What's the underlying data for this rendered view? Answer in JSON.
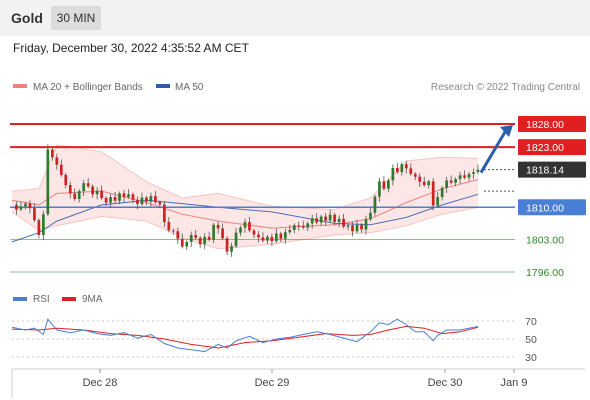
{
  "header": {
    "title": "Gold",
    "timeframe": "30 MIN"
  },
  "timestamp": "Friday, December 30, 2022 4:35:52 AM CET",
  "legend": {
    "items": [
      {
        "label": "MA 20 + Bollinger Bands",
        "color": "#f08080"
      },
      {
        "label": "MA 50",
        "color": "#2e5aa8"
      }
    ],
    "credit": "Research © 2022 Trading Central"
  },
  "rsi_legend": {
    "items": [
      {
        "label": "RSI",
        "color": "#4a7fd6"
      },
      {
        "label": "9MA",
        "color": "#e02020"
      }
    ]
  },
  "colors": {
    "up": "#2d7a2d",
    "down": "#d02020",
    "wick": "#555555",
    "resistance": "#e02020",
    "pivot": "#4a7fd6",
    "support": "#2d8a2d",
    "current": "#333333",
    "forecast_arrow": "#2a5fae"
  },
  "chart_data": {
    "type": "candlestick",
    "title": "Gold",
    "timeframe": "30 MIN",
    "x_tick_labels": [
      "Dec 28",
      "Dec 29",
      "Dec 30",
      "Jan 9"
    ],
    "ylim": [
      1795,
      1829
    ],
    "current_price": 1818.14,
    "levels": [
      {
        "value": 1828.0,
        "label": "1828.00",
        "kind": "resistance"
      },
      {
        "value": 1823.0,
        "label": "1823.00",
        "kind": "resistance"
      },
      {
        "value": 1818.14,
        "label": "1818.14",
        "kind": "current"
      },
      {
        "value": 1810.0,
        "label": "1810.00",
        "kind": "pivot"
      },
      {
        "value": 1803.0,
        "label": "1803.00",
        "kind": "support"
      },
      {
        "value": 1796.0,
        "label": "1796.00",
        "kind": "support"
      }
    ],
    "forecast": {
      "from": 1817.5,
      "to": 1828.0
    },
    "price_path": [
      [
        0,
        1810.5
      ],
      [
        1,
        1809.5
      ],
      [
        2,
        1810.2
      ],
      [
        3,
        1810.8
      ],
      [
        4,
        1809.8
      ],
      [
        5,
        1807.2
      ],
      [
        6,
        1804.0
      ],
      [
        7,
        1808.5
      ],
      [
        8,
        1822.5
      ],
      [
        9,
        1820.8
      ],
      [
        10,
        1819.2
      ],
      [
        11,
        1817.0
      ],
      [
        12,
        1814.8
      ],
      [
        13,
        1813.0
      ],
      [
        14,
        1811.8
      ],
      [
        15,
        1813.5
      ],
      [
        16,
        1815.2
      ],
      [
        17,
        1814.5
      ],
      [
        18,
        1812.8
      ],
      [
        19,
        1813.6
      ],
      [
        20,
        1812.0
      ],
      [
        21,
        1811.0
      ],
      [
        22,
        1812.2
      ],
      [
        23,
        1811.4
      ],
      [
        24,
        1813.0
      ],
      [
        25,
        1812.2
      ],
      [
        26,
        1812.8
      ],
      [
        27,
        1811.6
      ],
      [
        28,
        1810.7
      ],
      [
        29,
        1812.1
      ],
      [
        30,
        1811.2
      ],
      [
        31,
        1812.4
      ],
      [
        32,
        1811.1
      ],
      [
        33,
        1810.6
      ],
      [
        34,
        1806.8
      ],
      [
        35,
        1805.0
      ],
      [
        36,
        1804.8
      ],
      [
        37,
        1803.2
      ],
      [
        38,
        1801.5
      ],
      [
        39,
        1802.5
      ],
      [
        40,
        1804.0
      ],
      [
        41,
        1803.4
      ],
      [
        42,
        1802.0
      ],
      [
        43,
        1803.6
      ],
      [
        44,
        1803.0
      ],
      [
        45,
        1806.2
      ],
      [
        46,
        1805.4
      ],
      [
        47,
        1803.3
      ],
      [
        48,
        1800.4
      ],
      [
        49,
        1801.6
      ],
      [
        50,
        1804.5
      ],
      [
        51,
        1805.6
      ],
      [
        52,
        1806.8
      ],
      [
        53,
        1805.0
      ],
      [
        54,
        1804.1
      ],
      [
        55,
        1803.5
      ],
      [
        56,
        1802.8
      ],
      [
        57,
        1803.6
      ],
      [
        58,
        1802.7
      ],
      [
        59,
        1804.3
      ],
      [
        60,
        1803.2
      ],
      [
        61,
        1804.6
      ],
      [
        62,
        1805.1
      ],
      [
        63,
        1806.1
      ],
      [
        64,
        1806.0
      ],
      [
        65,
        1805.6
      ],
      [
        66,
        1806.5
      ],
      [
        67,
        1807.6
      ],
      [
        68,
        1806.7
      ],
      [
        69,
        1808.0
      ],
      [
        70,
        1807.1
      ],
      [
        71,
        1808.4
      ],
      [
        72,
        1806.8
      ],
      [
        73,
        1807.5
      ],
      [
        74,
        1805.8
      ],
      [
        75,
        1806.1
      ],
      [
        76,
        1804.8
      ],
      [
        77,
        1806.2
      ],
      [
        78,
        1805.2
      ],
      [
        79,
        1807.4
      ],
      [
        80,
        1808.8
      ],
      [
        81,
        1812.3
      ],
      [
        82,
        1815.6
      ],
      [
        83,
        1814.0
      ],
      [
        84,
        1815.8
      ],
      [
        85,
        1818.5
      ],
      [
        86,
        1817.6
      ],
      [
        87,
        1819.3
      ],
      [
        88,
        1818.4
      ],
      [
        89,
        1817.2
      ],
      [
        90,
        1816.6
      ],
      [
        91,
        1815.5
      ],
      [
        92,
        1814.8
      ],
      [
        93,
        1815.6
      ],
      [
        94,
        1810.4
      ],
      [
        95,
        1812.2
      ],
      [
        96,
        1814.2
      ],
      [
        97,
        1815.8
      ],
      [
        98,
        1815.3
      ],
      [
        99,
        1816.1
      ],
      [
        100,
        1816.9
      ],
      [
        101,
        1816.4
      ],
      [
        102,
        1817.2
      ],
      [
        103,
        1817.6
      ],
      [
        104,
        1818.14
      ]
    ],
    "bollinger": {
      "upper": [
        [
          0,
          1813.5
        ],
        [
          6,
          1814.0
        ],
        [
          10,
          1823.5
        ],
        [
          20,
          1822.0
        ],
        [
          30,
          1815.5
        ],
        [
          38,
          1812.0
        ],
        [
          46,
          1813.0
        ],
        [
          58,
          1810.2
        ],
        [
          72,
          1809.5
        ],
        [
          80,
          1812.0
        ],
        [
          88,
          1820.0
        ],
        [
          96,
          1820.8
        ],
        [
          104,
          1820.6
        ]
      ],
      "middle": [
        [
          0,
          1811.5
        ],
        [
          6,
          1810.5
        ],
        [
          10,
          1813.0
        ],
        [
          20,
          1813.5
        ],
        [
          30,
          1811.0
        ],
        [
          38,
          1808.5
        ],
        [
          46,
          1807.0
        ],
        [
          58,
          1805.5
        ],
        [
          72,
          1806.2
        ],
        [
          80,
          1807.5
        ],
        [
          88,
          1811.0
        ],
        [
          96,
          1814.0
        ],
        [
          104,
          1816.0
        ]
      ],
      "lower": [
        [
          0,
          1809.0
        ],
        [
          6,
          1805.0
        ],
        [
          10,
          1806.0
        ],
        [
          20,
          1808.0
        ],
        [
          30,
          1807.0
        ],
        [
          38,
          1803.5
        ],
        [
          46,
          1801.0
        ],
        [
          58,
          1802.0
        ],
        [
          72,
          1804.0
        ],
        [
          80,
          1804.5
        ],
        [
          88,
          1806.0
        ],
        [
          96,
          1808.5
        ],
        [
          104,
          1810.0
        ]
      ]
    },
    "ma50": [
      [
        0,
        1802.5
      ],
      [
        6,
        1804.5
      ],
      [
        10,
        1807.0
      ],
      [
        20,
        1810.5
      ],
      [
        30,
        1811.5
      ],
      [
        38,
        1810.8
      ],
      [
        46,
        1810.0
      ],
      [
        58,
        1809.0
      ],
      [
        72,
        1806.5
      ],
      [
        80,
        1806.2
      ],
      [
        88,
        1807.8
      ],
      [
        96,
        1810.5
      ],
      [
        104,
        1812.8
      ]
    ],
    "rsi": {
      "ticks": [
        70,
        50,
        30
      ],
      "ylim": [
        20,
        80
      ],
      "rsi": [
        [
          0,
          63
        ],
        [
          3,
          60
        ],
        [
          5,
          62
        ],
        [
          7,
          55
        ],
        [
          8,
          72
        ],
        [
          10,
          60
        ],
        [
          13,
          57
        ],
        [
          16,
          60
        ],
        [
          19,
          56
        ],
        [
          22,
          54
        ],
        [
          25,
          57
        ],
        [
          28,
          51
        ],
        [
          31,
          55
        ],
        [
          34,
          45
        ],
        [
          37,
          40
        ],
        [
          40,
          38
        ],
        [
          43,
          36
        ],
        [
          46,
          44
        ],
        [
          48,
          40
        ],
        [
          50,
          48
        ],
        [
          53,
          53
        ],
        [
          56,
          46
        ],
        [
          59,
          50
        ],
        [
          62,
          52
        ],
        [
          65,
          55
        ],
        [
          68,
          58
        ],
        [
          71,
          55
        ],
        [
          74,
          51
        ],
        [
          77,
          47
        ],
        [
          80,
          58
        ],
        [
          82,
          68
        ],
        [
          84,
          66
        ],
        [
          86,
          72
        ],
        [
          88,
          66
        ],
        [
          90,
          58
        ],
        [
          92,
          58
        ],
        [
          94,
          48
        ],
        [
          95,
          54
        ],
        [
          97,
          60
        ],
        [
          100,
          60
        ],
        [
          102,
          62
        ],
        [
          104,
          64
        ]
      ],
      "ma9": [
        [
          0,
          61
        ],
        [
          6,
          60
        ],
        [
          10,
          62
        ],
        [
          16,
          60
        ],
        [
          22,
          56
        ],
        [
          28,
          54
        ],
        [
          34,
          50
        ],
        [
          40,
          44
        ],
        [
          46,
          40
        ],
        [
          52,
          46
        ],
        [
          58,
          48
        ],
        [
          64,
          52
        ],
        [
          70,
          56
        ],
        [
          76,
          54
        ],
        [
          80,
          55
        ],
        [
          84,
          60
        ],
        [
          88,
          64
        ],
        [
          92,
          62
        ],
        [
          96,
          56
        ],
        [
          100,
          58
        ],
        [
          104,
          63
        ]
      ]
    }
  }
}
